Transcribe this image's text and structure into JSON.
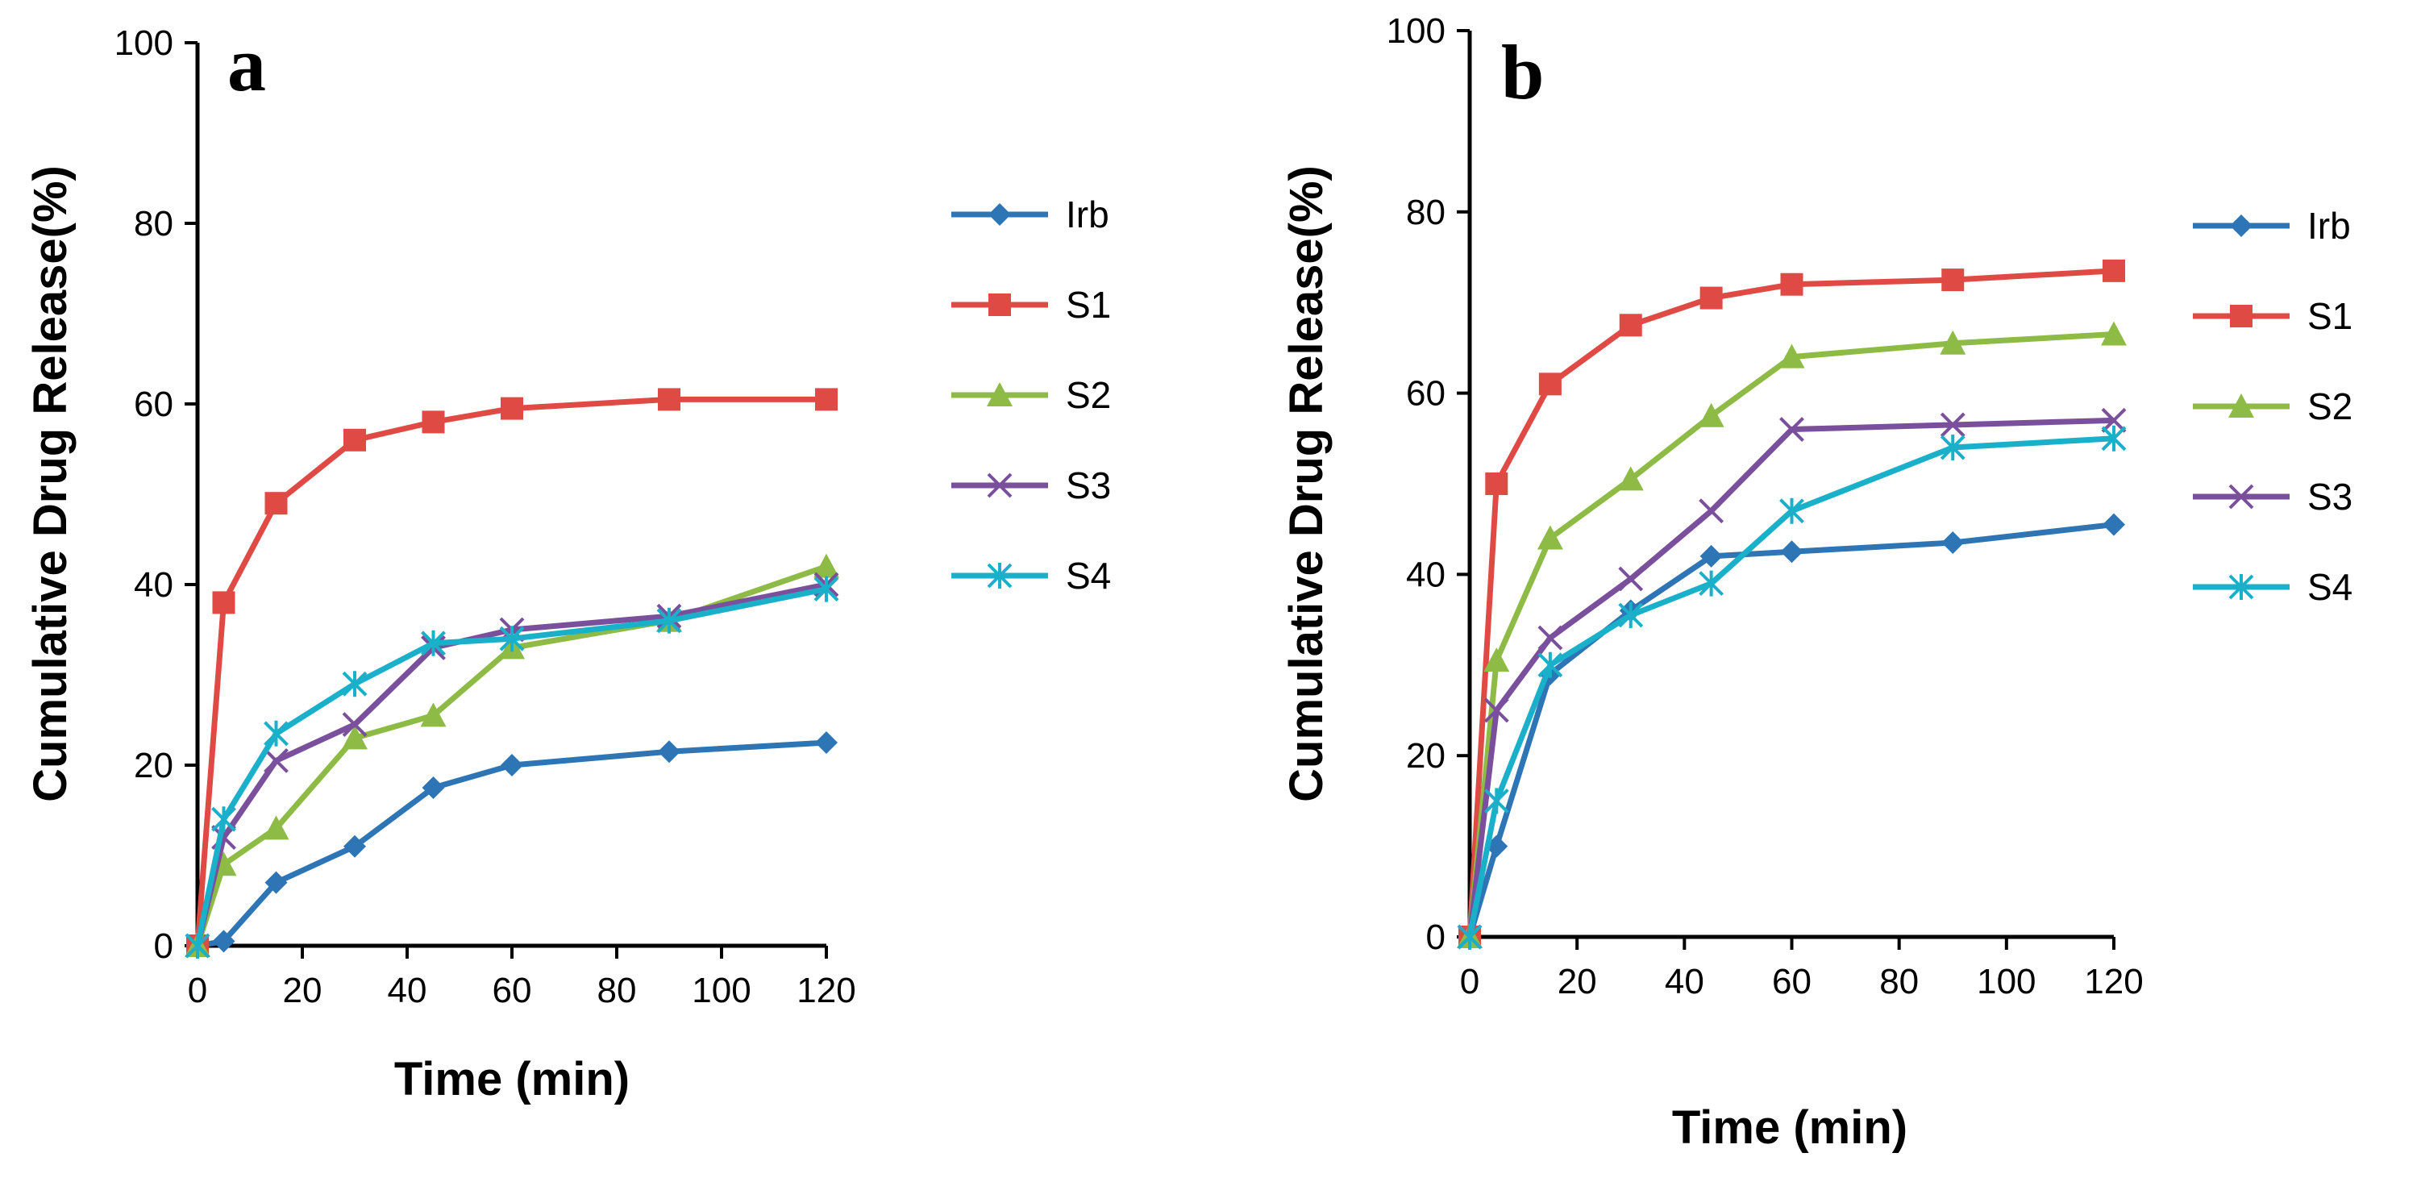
{
  "colors": {
    "Irb": "#2e75b6",
    "S1": "#e04a45",
    "S2": "#8dbb45",
    "S3": "#7a4f9c",
    "S4": "#1ab0c9"
  },
  "chart_data": [
    {
      "type": "line",
      "panel_label": "a",
      "xlabel": "Time (min)",
      "ylabel": "Cumulative Drug Release(%)",
      "xlim": [
        0,
        120
      ],
      "ylim": [
        0,
        100
      ],
      "xticks": [
        "0",
        "20",
        "40",
        "60",
        "80",
        "100",
        "120"
      ],
      "yticks": [
        "0",
        "20",
        "40",
        "60",
        "80",
        "100"
      ],
      "legend_position": "right",
      "series": [
        {
          "name": "Irb",
          "marker": "diamond",
          "x": [
            0,
            5,
            15,
            30,
            45,
            60,
            90,
            120
          ],
          "y": [
            0,
            0.5,
            7,
            11,
            17.5,
            20,
            21.5,
            22.5
          ]
        },
        {
          "name": "S1",
          "marker": "square",
          "x": [
            0,
            5,
            15,
            30,
            45,
            60,
            90,
            120
          ],
          "y": [
            0,
            38,
            49,
            56,
            58,
            59.5,
            60.5,
            60.5
          ]
        },
        {
          "name": "S2",
          "marker": "triangle",
          "x": [
            0,
            5,
            15,
            30,
            45,
            60,
            90,
            120
          ],
          "y": [
            0,
            9,
            13,
            23,
            25.5,
            33,
            36,
            42
          ]
        },
        {
          "name": "S3",
          "marker": "x",
          "x": [
            0,
            5,
            15,
            30,
            45,
            60,
            90,
            120
          ],
          "y": [
            0,
            12,
            20.5,
            24.5,
            33,
            35,
            36.5,
            40
          ]
        },
        {
          "name": "S4",
          "marker": "star",
          "x": [
            0,
            5,
            15,
            30,
            45,
            60,
            90,
            120
          ],
          "y": [
            0,
            14,
            23.5,
            29,
            33.5,
            34,
            36,
            39.5
          ]
        }
      ]
    },
    {
      "type": "line",
      "panel_label": "b",
      "xlabel": "Time (min)",
      "ylabel": "Cumulative Drug Release(%)",
      "xlim": [
        0,
        120
      ],
      "ylim": [
        0,
        100
      ],
      "xticks": [
        "0",
        "20",
        "40",
        "60",
        "80",
        "100",
        "120"
      ],
      "yticks": [
        "0",
        "20",
        "40",
        "60",
        "80",
        "100"
      ],
      "legend_position": "right",
      "series": [
        {
          "name": "Irb",
          "marker": "diamond",
          "x": [
            0,
            5,
            15,
            30,
            45,
            60,
            90,
            120
          ],
          "y": [
            0,
            10,
            29,
            36,
            42,
            42.5,
            43.5,
            45.5
          ]
        },
        {
          "name": "S1",
          "marker": "square",
          "x": [
            0,
            5,
            15,
            30,
            45,
            60,
            90,
            120
          ],
          "y": [
            0,
            50,
            61,
            67.5,
            70.5,
            72,
            72.5,
            73.5
          ]
        },
        {
          "name": "S2",
          "marker": "triangle",
          "x": [
            0,
            5,
            15,
            30,
            45,
            60,
            90,
            120
          ],
          "y": [
            0,
            30.5,
            44,
            50.5,
            57.5,
            64,
            65.5,
            66.5
          ]
        },
        {
          "name": "S3",
          "marker": "x",
          "x": [
            0,
            5,
            15,
            30,
            45,
            60,
            90,
            120
          ],
          "y": [
            0,
            25,
            33,
            39.5,
            47,
            56,
            56.5,
            57
          ]
        },
        {
          "name": "S4",
          "marker": "star",
          "x": [
            0,
            5,
            15,
            30,
            45,
            60,
            90,
            120
          ],
          "y": [
            0,
            15,
            30,
            35.5,
            39,
            47,
            54,
            55
          ]
        }
      ]
    }
  ]
}
